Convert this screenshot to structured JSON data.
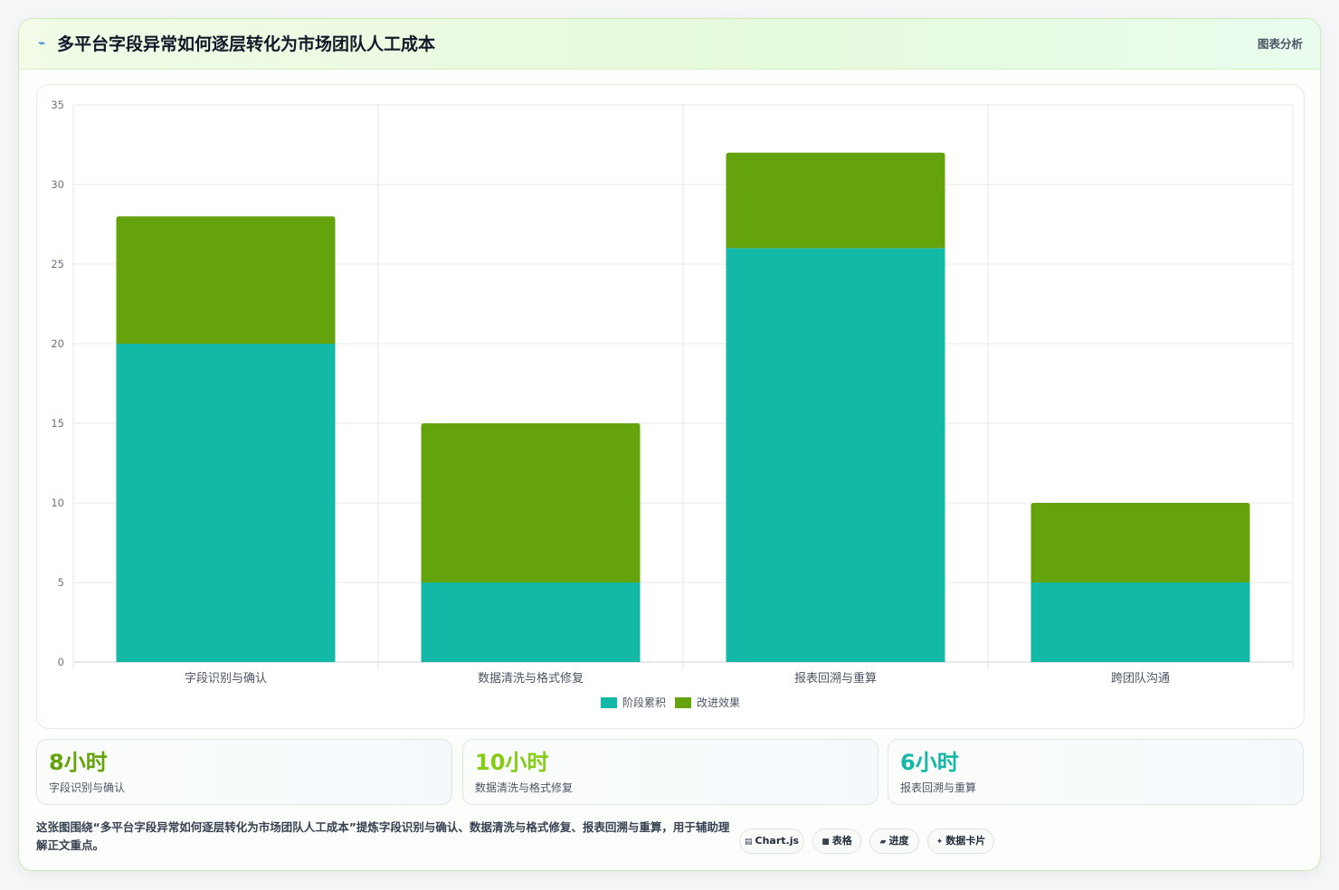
{
  "header": {
    "icon": "⌁",
    "title": "多平台字段异常如何逐层转化为市场团队人工成本",
    "tag": "图表分析"
  },
  "chart_data": {
    "type": "bar",
    "stacked": true,
    "categories": [
      "字段识别与确认",
      "数据清洗与格式修复",
      "报表回溯与重算",
      "跨团队沟通"
    ],
    "series": [
      {
        "name": "阶段累积",
        "values": [
          20,
          5,
          26,
          5
        ],
        "color": "#14b8a6"
      },
      {
        "name": "改进效果",
        "values": [
          8,
          10,
          6,
          5
        ],
        "color": "#65a30d"
      }
    ],
    "ylim": [
      0,
      35
    ],
    "yticks": [
      0,
      5,
      10,
      15,
      20,
      25,
      30,
      35
    ],
    "grid": true,
    "legend": "bottom-center"
  },
  "stats": [
    {
      "value": "8小时",
      "label": "字段识别与确认",
      "color": "#65a30d"
    },
    {
      "value": "10小时",
      "label": "数据清洗与格式修复",
      "color": "#84cc16"
    },
    {
      "value": "6小时",
      "label": "报表回溯与重算",
      "color": "#14b8a6"
    }
  ],
  "footer": {
    "description": "这张图围绕“多平台字段异常如何逐层转化为市场团队人工成本”提炼字段识别与确认、数据清洗与格式修复、报表回溯与重算，用于辅助理解正文重点。",
    "chips": [
      {
        "icon": "chart-js-icon",
        "glyph": "▤",
        "label": "Chart.js"
      },
      {
        "icon": "table-icon",
        "glyph": "■",
        "label": "表格"
      },
      {
        "icon": "progress-icon",
        "glyph": "▰",
        "label": "进度"
      },
      {
        "icon": "data-card-icon",
        "glyph": "✦",
        "label": "数据卡片"
      }
    ]
  }
}
